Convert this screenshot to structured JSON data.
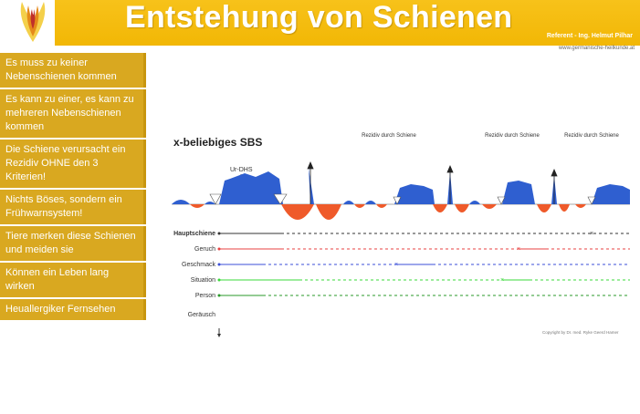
{
  "header": {
    "title": "Entstehung von Schienen",
    "referent": "Referent - Ing. Helmut Pilhar",
    "website": "www.germanische-heilkunde.at"
  },
  "sidebar": {
    "items": [
      {
        "label": "Es muss zu keiner Nebenschienen kommen"
      },
      {
        "label": "Es kann zu einer, es kann zu mehreren Nebenschienen kommen"
      },
      {
        "label": "Die Schiene verursacht ein Rezidiv OHNE den 3 Kriterien!"
      },
      {
        "label": "Nichts Böses, sondern ein Frühwarnsystem!"
      },
      {
        "label": "Tiere merken diese Schienen und meiden sie"
      },
      {
        "label": "Können ein Leben lang wirken"
      },
      {
        "label": "Heuallergiker Fernsehen"
      }
    ]
  },
  "diagram": {
    "title": "x-beliebiges SBS",
    "ur_dhs": "Ur-DHS",
    "rezidiv_labels": [
      "Rezidiv durch Schiene",
      "Rezidiv durch Schiene",
      "Rezidiv durch Schiene"
    ],
    "tracks": [
      {
        "label": "Hauptschiene",
        "color": "#333333"
      },
      {
        "label": "Geruch",
        "color": "#e84040"
      },
      {
        "label": "Geschmack",
        "color": "#3b4fd8"
      },
      {
        "label": "Situation",
        "color": "#3ad83a"
      },
      {
        "label": "Person",
        "color": "#2a9a2a"
      },
      {
        "label": "Geräusch",
        "color": "#333333"
      }
    ],
    "colors": {
      "wave_positive": "#2f5fd0",
      "wave_negative": "#ef5a2a"
    },
    "copyright": "Copyright by Dr. med. Ryke Geerd Hamer"
  }
}
